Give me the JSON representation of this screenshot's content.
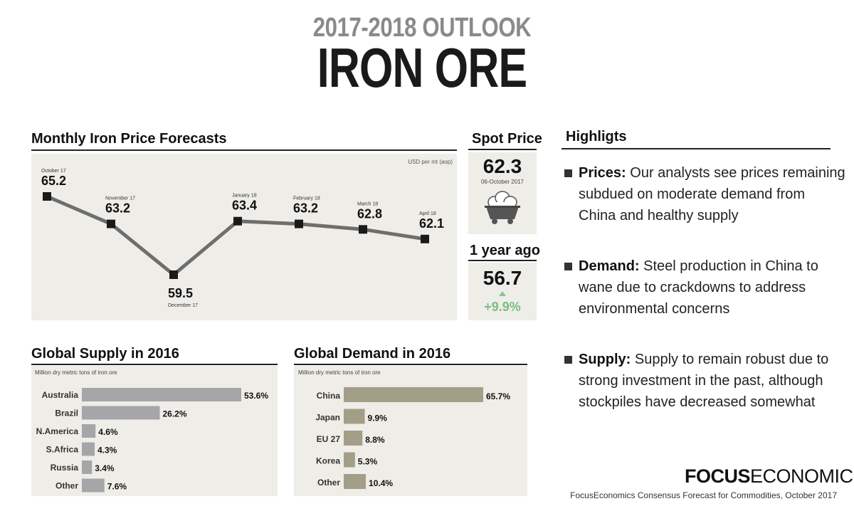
{
  "header": {
    "outlook": "2017-2018 OUTLOOK",
    "title": "IRON ORE"
  },
  "chart_data": [
    {
      "type": "line",
      "title": "Monthly Iron Price Forecasts",
      "unit_label": "USD per mt (aop)",
      "categories": [
        "October 17",
        "November 17",
        "December 17",
        "January 18",
        "February 18",
        "March 18",
        "April 18"
      ],
      "values": [
        65.2,
        63.2,
        59.5,
        63.4,
        63.2,
        62.8,
        62.1
      ],
      "value_labels": [
        "65.2",
        "63.2",
        "59.5",
        "63.4",
        "63.2",
        "62.8",
        "62.1"
      ],
      "line_color": "#6e6e6e"
    },
    {
      "type": "bar",
      "orientation": "horizontal",
      "title": "Global Supply in 2016",
      "unit_label": "Million dry metric tons of iron ore",
      "categories": [
        "Australia",
        "Brazil",
        "N.America",
        "S.Africa",
        "Russia",
        "Other"
      ],
      "values": [
        53.6,
        26.2,
        4.6,
        4.3,
        3.4,
        7.6
      ],
      "value_labels": [
        "53.6%",
        "26.2%",
        "4.6%",
        "4.3%",
        "3.4%",
        "7.6%"
      ],
      "bar_color": "#a6a6a9"
    },
    {
      "type": "bar",
      "orientation": "horizontal",
      "title": "Global Demand in 2016",
      "unit_label": "Million dry metric tons of iron ore",
      "categories": [
        "China",
        "Japan",
        "EU 27",
        "Korea",
        "Other"
      ],
      "values": [
        65.7,
        9.9,
        8.8,
        5.3,
        10.4
      ],
      "value_labels": [
        "65.7%",
        "9.9%",
        "8.8%",
        "5.3%",
        "10.4%"
      ],
      "bar_color": "#a39e88"
    }
  ],
  "spot": {
    "title": "Spot Price",
    "value": "62.3",
    "date": "06-October 2017",
    "icon": "mine-cart-icon"
  },
  "year_ago": {
    "title": "1 year ago",
    "value": "56.7",
    "change": "+9.9%",
    "change_color": "#7cbf7c"
  },
  "highlights": {
    "title": "Highligts",
    "items": [
      {
        "key": "Prices:",
        "text": "Our analysts see prices remaining subdued on moderate demand from China and healthy supply"
      },
      {
        "key": "Demand:",
        "text": "Steel production in China to wane due to crackdowns to address environmental concerns"
      },
      {
        "key": "Supply:",
        "text": "Supply to remain robust due to strong investment in the past, although stockpiles have decreased somewhat"
      }
    ]
  },
  "footer": {
    "brand_bold": "FOCUS",
    "brand_light": "ECONOMICS",
    "source": "FocusEconomics Consensus Forecast for Commodities, October 2017"
  }
}
